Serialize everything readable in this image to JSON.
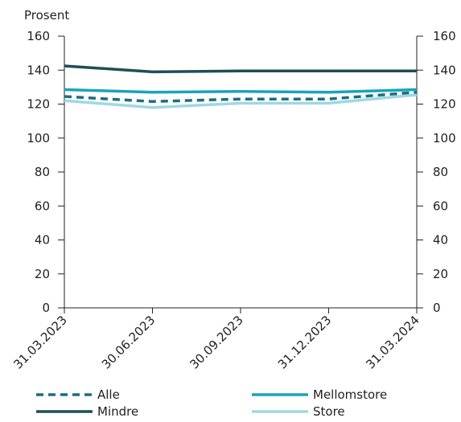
{
  "chart_data": {
    "type": "line",
    "ylabel": "Prosent",
    "ylim": [
      0,
      160
    ],
    "yticks": [
      0,
      20,
      40,
      60,
      80,
      100,
      120,
      140,
      160
    ],
    "yticks_right": true,
    "grid": false,
    "legend": "bottom",
    "categories": [
      "31.03.2023",
      "30.06.2023",
      "30.09.2023",
      "31.12.2023",
      "31.03.2024"
    ],
    "series": [
      {
        "name": "Alle",
        "values": [
          124.5,
          121.5,
          123,
          123,
          127
        ],
        "color": "#1b6f7f",
        "style": "dashed"
      },
      {
        "name": "Mellomstore",
        "values": [
          128.5,
          127,
          127.5,
          127,
          128.5
        ],
        "color": "#1aa3bc",
        "style": "solid"
      },
      {
        "name": "Mindre",
        "values": [
          142.5,
          139,
          139.5,
          139.5,
          139.5
        ],
        "color": "#1d4f56",
        "style": "solid"
      },
      {
        "name": "Store",
        "values": [
          122,
          118,
          120.5,
          120.5,
          125.5
        ],
        "color": "#9fd8e3",
        "style": "solid"
      }
    ]
  }
}
